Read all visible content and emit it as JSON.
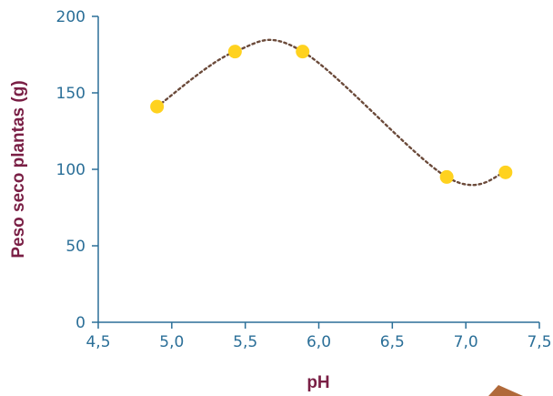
{
  "chart_data": {
    "type": "scatter",
    "title": "",
    "xlabel": "pH",
    "ylabel": "Peso seco plantas (g)",
    "xlim": [
      4.5,
      7.5
    ],
    "ylim": [
      0,
      200
    ],
    "x_ticks": [
      4.5,
      5.0,
      5.5,
      6.0,
      6.5,
      7.0,
      7.5
    ],
    "x_tick_labels": [
      "4,5",
      "5,0",
      "5,5",
      "6,0",
      "6,5",
      "7,0",
      "7,5"
    ],
    "y_ticks": [
      0,
      50,
      100,
      150,
      200
    ],
    "y_tick_labels": [
      "0",
      "50",
      "100",
      "150",
      "200"
    ],
    "grid": false,
    "legend": "none",
    "series": [
      {
        "x": [
          4.9,
          5.43,
          5.89,
          6.87,
          7.27
        ],
        "y": [
          141,
          177,
          177,
          95,
          98
        ],
        "marker_color": "#ffd21f",
        "trendline": "dotted smooth curve",
        "trendline_color": "#6b4a3a"
      }
    ],
    "colors": {
      "axis": "#2b6f98",
      "tick_text": "#2b6f98",
      "axis_title": "#7a1f45",
      "decoration": "#b0693a"
    }
  }
}
